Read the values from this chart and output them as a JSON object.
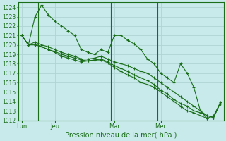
{
  "title": "Pression niveau de la mer( hPa )",
  "bg_color": "#c8eaea",
  "grid_color": "#b0d4d4",
  "line_color": "#1a6e1a",
  "marker": "+",
  "ylim": [
    1012,
    1024.5
  ],
  "yticks": [
    1012,
    1013,
    1014,
    1015,
    1016,
    1017,
    1018,
    1019,
    1020,
    1021,
    1022,
    1023,
    1024
  ],
  "xtick_labels": [
    "Lun",
    "Jeu",
    "Mar",
    "Mer"
  ],
  "xtick_positions": [
    0,
    5,
    14,
    21
  ],
  "vline_positions": [
    2.5,
    13.5,
    20.5
  ],
  "lines": [
    [
      1021.0,
      1020.0,
      1023.0,
      1024.2,
      1023.2,
      1022.5,
      1022.0,
      1021.5,
      1021.0,
      1019.5,
      1019.2,
      1019.0,
      1019.5,
      1019.2,
      1021.0,
      1021.0,
      1020.5,
      1020.1,
      1019.5,
      1018.5,
      1018.0,
      1017.0,
      1016.5,
      1016.0,
      1018.0,
      1017.0,
      1015.5,
      1013.0,
      1012.2,
      1012.5,
      1013.8
    ],
    [
      1021.0,
      1020.0,
      1020.3,
      1020.0,
      1019.8,
      1019.5,
      1019.2,
      1019.0,
      1018.8,
      1018.5,
      1018.5,
      1018.6,
      1018.8,
      1018.5,
      1018.2,
      1018.0,
      1017.8,
      1017.5,
      1017.2,
      1017.0,
      1016.5,
      1016.0,
      1015.5,
      1015.0,
      1014.5,
      1014.0,
      1013.5,
      1013.0,
      1012.5,
      1012.3,
      1013.8
    ],
    [
      1021.0,
      1020.0,
      1020.1,
      1019.8,
      1019.5,
      1019.2,
      1018.8,
      1018.6,
      1018.4,
      1018.2,
      1018.3,
      1018.4,
      1018.5,
      1018.2,
      1017.8,
      1017.5,
      1017.2,
      1016.8,
      1016.5,
      1016.2,
      1015.8,
      1015.2,
      1014.8,
      1014.2,
      1013.8,
      1013.5,
      1013.0,
      1012.8,
      1012.5,
      1012.3,
      1013.9
    ],
    [
      1021.0,
      1020.0,
      1020.0,
      1019.8,
      1019.5,
      1019.3,
      1019.0,
      1018.8,
      1018.6,
      1018.4,
      1018.3,
      1018.4,
      1018.4,
      1018.1,
      1017.6,
      1017.2,
      1016.8,
      1016.5,
      1016.0,
      1015.8,
      1015.5,
      1015.0,
      1014.5,
      1014.0,
      1013.5,
      1013.0,
      1012.8,
      1012.5,
      1012.2,
      1012.3,
      1013.8
    ]
  ],
  "n_points": 31
}
